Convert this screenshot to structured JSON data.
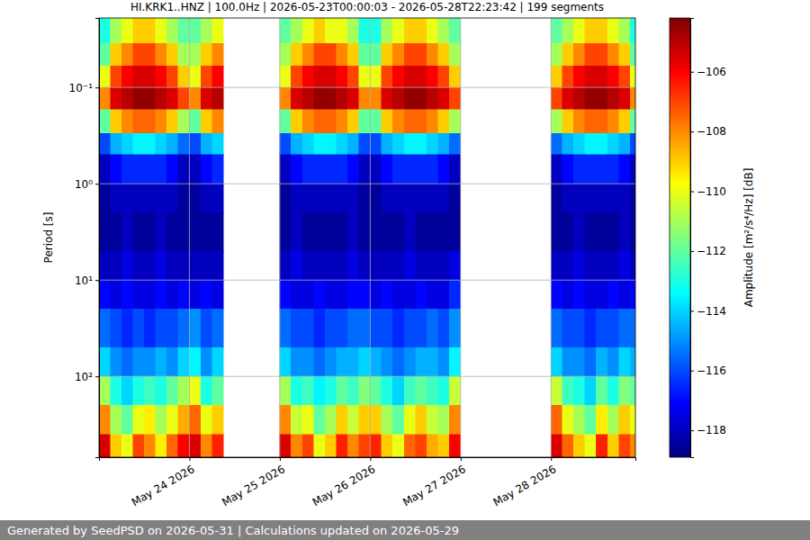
{
  "chart_data": {
    "type": "heatmap",
    "title": "HI.KRK1..HNZ | 100.0Hz | 2026-05-23T00:00:03 - 2026-05-28T22:23:42 | 199 segments",
    "footer": "Generated by SeedPSD on 2026-05-31 | Calculations updated on 2026-05-29",
    "y_label": "Period [s]",
    "log": "y",
    "grid": true,
    "xlim": [
      "2026-05-23T00:00:03",
      "2026-05-28T22:23:42"
    ],
    "ylim": [
      0.019,
      690
    ],
    "xticks": [
      {
        "value": "2026-05-24T00:00:00",
        "label": "May 24 2026"
      },
      {
        "value": "2026-05-25T00:00:00",
        "label": "May 25 2026"
      },
      {
        "value": "2026-05-26T00:00:00",
        "label": "May 26 2026"
      },
      {
        "value": "2026-05-27T00:00:00",
        "label": "May 27 2026"
      },
      {
        "value": "2026-05-28T00:00:00",
        "label": "May 28 2026"
      }
    ],
    "yticks": [
      {
        "value": 0.1,
        "label": "10⁻¹"
      },
      {
        "value": 1,
        "label": "10⁰"
      },
      {
        "value": 10,
        "label": "10¹"
      },
      {
        "value": 100,
        "label": "10²"
      }
    ],
    "x": [
      "2026-05-23T00:00:00",
      "2026-05-23T03:00:00",
      "2026-05-23T06:00:00",
      "2026-05-23T09:00:00",
      "2026-05-23T12:00:00",
      "2026-05-23T15:00:00",
      "2026-05-23T18:00:00",
      "2026-05-23T21:00:00",
      "2026-05-24T00:00:00",
      "2026-05-24T03:00:00",
      "2026-05-24T06:00:00",
      "2026-05-24T09:00:00",
      "2026-05-24T12:00:00",
      "2026-05-24T15:00:00",
      "2026-05-24T18:00:00",
      "2026-05-24T21:00:00",
      "2026-05-25T00:00:00",
      "2026-05-25T03:00:00",
      "2026-05-25T06:00:00",
      "2026-05-25T09:00:00",
      "2026-05-25T12:00:00",
      "2026-05-25T15:00:00",
      "2026-05-25T18:00:00",
      "2026-05-25T21:00:00",
      "2026-05-26T00:00:00",
      "2026-05-26T03:00:00",
      "2026-05-26T06:00:00",
      "2026-05-26T09:00:00",
      "2026-05-26T12:00:00",
      "2026-05-26T15:00:00",
      "2026-05-26T18:00:00",
      "2026-05-26T21:00:00",
      "2026-05-27T00:00:00",
      "2026-05-27T03:00:00",
      "2026-05-27T06:00:00",
      "2026-05-27T09:00:00",
      "2026-05-27T12:00:00",
      "2026-05-27T15:00:00",
      "2026-05-27T18:00:00",
      "2026-05-27T21:00:00",
      "2026-05-28T00:00:00",
      "2026-05-28T03:00:00",
      "2026-05-28T06:00:00",
      "2026-05-28T09:00:00",
      "2026-05-28T12:00:00",
      "2026-05-28T15:00:00",
      "2026-05-28T18:00:00",
      "2026-05-28T21:00:00",
      "2026-05-29T00:00:00"
    ],
    "y": [
      0.019,
      0.035,
      0.06,
      0.1,
      0.17,
      0.3,
      0.5,
      1,
      2,
      5,
      10,
      20,
      50,
      100,
      200,
      400,
      690
    ],
    "z": [
      [
        -113,
        -111,
        -110,
        -109,
        -109,
        -110,
        -111,
        -112,
        -112,
        -111,
        -110,
        null,
        null,
        null,
        null,
        null,
        -112,
        -111,
        -110,
        -109,
        -110,
        -110,
        -111,
        -113,
        -113,
        -111,
        -110,
        -109,
        -109,
        -110,
        -111,
        -112,
        null,
        null,
        null,
        null,
        null,
        null,
        null,
        null,
        -112,
        -111,
        -110,
        -109,
        -109,
        -110,
        -111,
        -113
      ],
      [
        -112,
        -109,
        -108,
        -107,
        -107,
        -108,
        -109,
        -111,
        -111,
        -109,
        -108,
        null,
        null,
        null,
        null,
        null,
        -111,
        -109,
        -108,
        -107,
        -107,
        -108,
        -109,
        -112,
        -112,
        -109,
        -108,
        -107,
        -107,
        -108,
        -109,
        -111,
        null,
        null,
        null,
        null,
        null,
        null,
        null,
        null,
        -111,
        -109,
        -108,
        -107,
        -107,
        -108,
        -109,
        -112
      ],
      [
        -110,
        -107,
        -106,
        -105.5,
        -105.5,
        -106,
        -107,
        -109,
        -110,
        -107,
        -106,
        null,
        null,
        null,
        null,
        null,
        -110,
        -107,
        -106,
        -105.5,
        -105.5,
        -106,
        -107,
        -110,
        -110,
        -107,
        -106,
        -105.5,
        -105.5,
        -106,
        -107,
        -109,
        null,
        null,
        null,
        null,
        null,
        null,
        null,
        null,
        -109,
        -107,
        -106,
        -105.5,
        -105.5,
        -106,
        -107,
        -110
      ],
      [
        -108,
        -105.5,
        -105,
        -104.5,
        -104.5,
        -105,
        -105.5,
        -107,
        -108,
        -105.5,
        -105,
        null,
        null,
        null,
        null,
        null,
        -108,
        -105.5,
        -105,
        -104.5,
        -104.5,
        -105,
        -105.5,
        -108,
        -108,
        -105.5,
        -105,
        -104.5,
        -104.5,
        -105,
        -105.5,
        -107,
        null,
        null,
        null,
        null,
        null,
        null,
        null,
        null,
        -107,
        -105.5,
        -105,
        -104.5,
        -104.5,
        -105,
        -105.5,
        -108
      ],
      [
        -112,
        -109,
        -108,
        -107.5,
        -107.5,
        -108,
        -109,
        -111,
        -112,
        -109,
        -108,
        null,
        null,
        null,
        null,
        null,
        -112,
        -109,
        -108,
        -107.5,
        -107.5,
        -108,
        -109,
        -112,
        -112,
        -109,
        -108,
        -107.5,
        -107.5,
        -108,
        -109,
        -111,
        null,
        null,
        null,
        null,
        null,
        null,
        null,
        null,
        -111,
        -109,
        -108,
        -107.5,
        -107.5,
        -108,
        -109,
        -112
      ],
      [
        -116,
        -114.5,
        -114,
        -113.5,
        -113.5,
        -114,
        -114.5,
        -115.5,
        -116,
        -114.5,
        -114,
        null,
        null,
        null,
        null,
        null,
        -116,
        -114.5,
        -114,
        -113.5,
        -113.5,
        -114,
        -114.5,
        -116,
        -116,
        -114.5,
        -114,
        -113.5,
        -113.5,
        -114,
        -114.5,
        -115.5,
        null,
        null,
        null,
        null,
        null,
        null,
        null,
        null,
        -115.5,
        -114.5,
        -114,
        -113.5,
        -113.5,
        -114,
        -114.5,
        -116
      ],
      [
        -118,
        -117,
        -116.5,
        -116.5,
        -116.5,
        -116.5,
        -117,
        -118,
        -118,
        -117,
        -116.5,
        null,
        null,
        null,
        null,
        null,
        -118,
        -117,
        -116.5,
        -116.5,
        -116.5,
        -116.5,
        -117,
        -118,
        -118,
        -117,
        -116.5,
        -116.5,
        -116.5,
        -116.5,
        -117,
        -118,
        null,
        null,
        null,
        null,
        null,
        null,
        null,
        null,
        -118,
        -117,
        -116.5,
        -116.5,
        -116.5,
        -116.5,
        -117,
        -118
      ],
      [
        -118.5,
        -118,
        -118,
        -118,
        -118,
        -118,
        -118,
        -118.5,
        -118.5,
        -118,
        -118,
        null,
        null,
        null,
        null,
        null,
        -118.5,
        -118,
        -118,
        -118,
        -118,
        -118,
        -118,
        -118.5,
        -118.5,
        -118,
        -118,
        -118,
        -118,
        -118,
        -118,
        -118.5,
        null,
        null,
        null,
        null,
        null,
        null,
        null,
        null,
        -118.5,
        -118,
        -118,
        -118,
        -118,
        -118,
        -118,
        -118.5
      ],
      [
        -118.5,
        -118.5,
        -118,
        -118.5,
        -118.5,
        -118,
        -118.5,
        -118.5,
        -118.5,
        -118.5,
        -118.5,
        null,
        null,
        null,
        null,
        null,
        -118.5,
        -118,
        -118.5,
        -118.5,
        -118.5,
        -118.5,
        -118,
        -118.5,
        -118.5,
        -118.5,
        -118.5,
        -118,
        -118.5,
        -118.5,
        -118.5,
        -118.5,
        null,
        null,
        null,
        null,
        null,
        null,
        null,
        null,
        -118.5,
        -118.5,
        -118,
        -118.5,
        -118.5,
        -118.5,
        -118,
        -118.5
      ],
      [
        -118,
        -118,
        -117.5,
        -118,
        -118,
        -117.5,
        -118,
        -118,
        -118,
        -118,
        -118,
        null,
        null,
        null,
        null,
        null,
        -118,
        -117.5,
        -118,
        -118,
        -118,
        -118,
        -117.5,
        -118,
        -118,
        -118,
        -118,
        -117.5,
        -118,
        -118,
        -118,
        -117.5,
        null,
        null,
        null,
        null,
        null,
        null,
        null,
        null,
        -118,
        -118,
        -117.5,
        -118,
        -118,
        -118,
        -117.5,
        -118
      ],
      [
        -117,
        -117.5,
        -117,
        -117.5,
        -117.5,
        -117,
        -117.5,
        -117,
        -117.5,
        -117,
        -117.5,
        null,
        null,
        null,
        null,
        null,
        -117,
        -117.5,
        -117.5,
        -117,
        -117.5,
        -117.5,
        -117,
        -117,
        -117.5,
        -117,
        -117.5,
        -117.5,
        -117,
        -117.5,
        -117.5,
        -116.5,
        null,
        null,
        null,
        null,
        null,
        null,
        null,
        null,
        -117,
        -117.5,
        -117,
        -117.5,
        -117.5,
        -117,
        -117.5,
        -117
      ],
      [
        -115.5,
        -116,
        -116.5,
        -116,
        -116.5,
        -116,
        -116,
        -115.5,
        -115,
        -116,
        -115.5,
        null,
        null,
        null,
        null,
        null,
        -115.5,
        -116,
        -116,
        -116.5,
        -116,
        -116,
        -115.5,
        -115.5,
        -116,
        -116,
        -116.5,
        -116,
        -116,
        -115.5,
        -116,
        -115,
        null,
        null,
        null,
        null,
        null,
        null,
        null,
        null,
        -115.5,
        -116,
        -116,
        -116.5,
        -116,
        -116,
        -115.5,
        -115.5
      ],
      [
        -114,
        -115,
        -115.5,
        -115,
        -115,
        -114.5,
        -115,
        -114,
        -113.5,
        -115,
        -114,
        null,
        null,
        null,
        null,
        null,
        -114,
        -115,
        -115,
        -115.5,
        -115,
        -114.5,
        -114.5,
        -114,
        -114.5,
        -115,
        -115.5,
        -115,
        -114.5,
        -114.5,
        -115,
        -113.5,
        null,
        null,
        null,
        null,
        null,
        null,
        null,
        null,
        -114,
        -115,
        -115,
        -115.5,
        -114.5,
        -115,
        -114,
        -114.5
      ],
      [
        -111,
        -113,
        -114,
        -113,
        -112.5,
        -113,
        -112,
        -111,
        -110,
        -113,
        -112,
        null,
        null,
        null,
        null,
        null,
        -111,
        -113,
        -112.5,
        -113.5,
        -113,
        -112,
        -112.5,
        -111.5,
        -112,
        -113,
        -114,
        -112.5,
        -112,
        -112.5,
        -113,
        -110.5,
        null,
        null,
        null,
        null,
        null,
        null,
        null,
        null,
        -110.5,
        -112.5,
        -113,
        -114,
        -112,
        -113,
        -111.5,
        -112
      ],
      [
        -108,
        -111,
        -112,
        -110,
        -109.5,
        -111,
        -110,
        -108.5,
        -107.5,
        -110,
        -109,
        null,
        null,
        null,
        null,
        null,
        -108,
        -110.5,
        -110,
        -112,
        -111,
        -109,
        -110.5,
        -109,
        -109,
        -111,
        -112,
        -110,
        -109,
        -110.5,
        -111,
        -108,
        null,
        null,
        null,
        null,
        null,
        null,
        null,
        null,
        -107.5,
        -110,
        -111,
        -112,
        -109.5,
        -111,
        -109,
        -110
      ],
      [
        -105.5,
        -109,
        -110,
        -107,
        -108,
        -109.5,
        -107.5,
        -106,
        -105.5,
        -108,
        -106.5,
        null,
        null,
        null,
        null,
        null,
        -105.5,
        -108,
        -107,
        -110,
        -109,
        -106.5,
        -108,
        -107,
        -106.5,
        -109,
        -110,
        -107.5,
        -107,
        -108.5,
        -109,
        -106,
        null,
        null,
        null,
        null,
        null,
        null,
        null,
        null,
        -105.5,
        -107.5,
        -109,
        -110,
        -106.5,
        -109,
        -107,
        -108
      ]
    ],
    "colorbar": {
      "label": "Amplitude [m²/s⁴/Hz] [dB]",
      "range": [
        -118.9,
        -104.2
      ],
      "ticks": [
        {
          "value": -118,
          "label": "−118"
        },
        {
          "value": -116,
          "label": "−116"
        },
        {
          "value": -114,
          "label": "−114"
        },
        {
          "value": -112,
          "label": "−112"
        },
        {
          "value": -110,
          "label": "−110"
        },
        {
          "value": -108,
          "label": "−108"
        },
        {
          "value": -106,
          "label": "−106"
        }
      ]
    }
  }
}
